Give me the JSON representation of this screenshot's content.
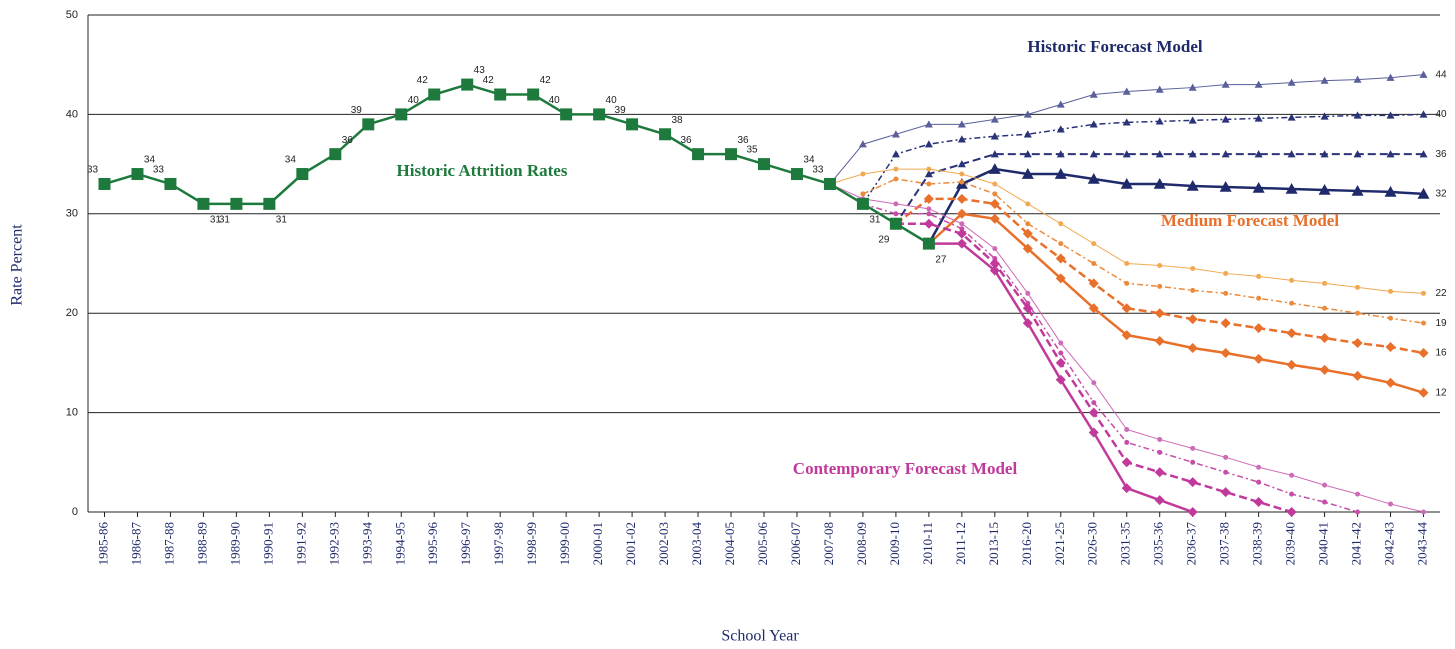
{
  "chart_data": {
    "type": "line",
    "ylabel": "Rate Percent",
    "xlabel": "School Year",
    "categories": [
      "1985-86",
      "1986-87",
      "1987-88",
      "1988-89",
      "1989-90",
      "1990-91",
      "1991-92",
      "1992-93",
      "1993-94",
      "1994-95",
      "1995-96",
      "1996-97",
      "1997-98",
      "1998-99",
      "1999-00",
      "2000-01",
      "2001-02",
      "2002-03",
      "2003-04",
      "2004-05",
      "2005-06",
      "2006-07",
      "2007-08",
      "2008-09",
      "2009-10",
      "2010-11",
      "2011-12",
      "2013-15",
      "2016-20",
      "2021-25",
      "2026-30",
      "2031-35",
      "2035-36",
      "2036-37",
      "2037-38",
      "2038-39",
      "2039-40",
      "2040-41",
      "2041-42",
      "2042-43",
      "2043-44"
    ],
    "ylim": [
      0,
      50
    ],
    "yticks": [
      0,
      10,
      20,
      30,
      40,
      50
    ],
    "grid": true,
    "annotations": [
      {
        "text": "Historic Forecast Model",
        "color": "#1f2a6b"
      },
      {
        "text": "Historic Attrition Rates",
        "color": "#1e7a3c"
      },
      {
        "text": "Medium Forecast Model",
        "color": "#e8702a"
      },
      {
        "text": "Contemporary Forecast Model",
        "color": "#c0399b"
      }
    ],
    "series": [
      {
        "color": "#5a5f9a",
        "dash": "",
        "width": 1,
        "marker": "triangle",
        "values": [
          null,
          null,
          null,
          null,
          null,
          null,
          null,
          null,
          null,
          null,
          null,
          null,
          null,
          null,
          null,
          null,
          null,
          null,
          null,
          null,
          null,
          null,
          33,
          37,
          38,
          39,
          39,
          39.5,
          40,
          41,
          42,
          42.3,
          42.5,
          42.7,
          43,
          43,
          43.2,
          43.4,
          43.5,
          43.7,
          44
        ]
      },
      {
        "color": "#2a3278",
        "dash": "6,3,2,3",
        "width": 1.5,
        "marker": "triangle",
        "values": [
          null,
          null,
          null,
          null,
          null,
          null,
          null,
          null,
          null,
          null,
          null,
          null,
          null,
          null,
          null,
          null,
          null,
          null,
          null,
          null,
          null,
          null,
          null,
          31,
          36,
          37,
          37.5,
          37.8,
          38,
          38.5,
          39,
          39.2,
          39.3,
          39.4,
          39.5,
          39.6,
          39.7,
          39.8,
          39.9,
          39.9,
          40
        ]
      },
      {
        "color": "#2a3278",
        "dash": "8,4",
        "width": 2,
        "marker": "triangle",
        "values": [
          null,
          null,
          null,
          null,
          null,
          null,
          null,
          null,
          null,
          null,
          null,
          null,
          null,
          null,
          null,
          null,
          null,
          null,
          null,
          null,
          null,
          null,
          null,
          31,
          29,
          34,
          35,
          36,
          36,
          36,
          36,
          36,
          36,
          36,
          36,
          36,
          36,
          36,
          36,
          36,
          36
        ]
      },
      {
        "color": "#1f2a6b",
        "dash": "",
        "width": 2.5,
        "marker": "triangle",
        "values": [
          null,
          null,
          null,
          null,
          null,
          null,
          null,
          null,
          null,
          null,
          null,
          null,
          null,
          null,
          null,
          null,
          null,
          null,
          null,
          null,
          null,
          null,
          null,
          null,
          null,
          27,
          33,
          34.5,
          34,
          34,
          33.5,
          33,
          33,
          32.8,
          32.7,
          32.6,
          32.5,
          32.4,
          32.3,
          32.2,
          32
        ]
      },
      {
        "color": "#f0a950",
        "dash": "",
        "width": 1,
        "marker": "circle",
        "values": [
          null,
          null,
          null,
          null,
          null,
          null,
          null,
          null,
          null,
          null,
          null,
          null,
          null,
          null,
          null,
          null,
          null,
          null,
          null,
          null,
          null,
          null,
          33,
          34,
          34.5,
          34.5,
          34,
          33,
          31,
          29,
          27,
          25,
          24.8,
          24.5,
          24,
          23.7,
          23.3,
          23,
          22.6,
          22.2,
          22
        ]
      },
      {
        "color": "#ec8a3c",
        "dash": "6,3,2,3",
        "width": 1.5,
        "marker": "circle",
        "values": [
          null,
          null,
          null,
          null,
          null,
          null,
          null,
          null,
          null,
          null,
          null,
          null,
          null,
          null,
          null,
          null,
          null,
          null,
          null,
          null,
          null,
          null,
          null,
          32,
          33.5,
          33,
          33.2,
          32,
          29,
          27,
          25,
          23,
          22.7,
          22.3,
          22,
          21.5,
          21,
          20.5,
          20,
          19.5,
          19
        ]
      },
      {
        "color": "#e8702a",
        "dash": "8,4",
        "width": 2.5,
        "marker": "diamond",
        "values": [
          null,
          null,
          null,
          null,
          null,
          null,
          null,
          null,
          null,
          null,
          null,
          null,
          null,
          null,
          null,
          null,
          null,
          null,
          null,
          null,
          null,
          null,
          null,
          null,
          29,
          31.5,
          31.5,
          31,
          28,
          25.5,
          23,
          20.5,
          20,
          19.4,
          19,
          18.5,
          18,
          17.5,
          17,
          16.6,
          16
        ]
      },
      {
        "color": "#e8702a",
        "dash": "",
        "width": 2.5,
        "marker": "diamond",
        "values": [
          null,
          null,
          null,
          null,
          null,
          null,
          null,
          null,
          null,
          null,
          null,
          null,
          null,
          null,
          null,
          null,
          null,
          null,
          null,
          null,
          null,
          null,
          null,
          null,
          null,
          27,
          30,
          29.5,
          26.5,
          23.5,
          20.5,
          17.8,
          17.2,
          16.5,
          16,
          15.4,
          14.8,
          14.3,
          13.7,
          13,
          12
        ]
      },
      {
        "color": "#cf6bb6",
        "dash": "",
        "width": 1,
        "marker": "circle",
        "values": [
          null,
          null,
          null,
          null,
          null,
          null,
          null,
          null,
          null,
          null,
          null,
          null,
          null,
          null,
          null,
          null,
          null,
          null,
          null,
          null,
          null,
          null,
          33,
          31.5,
          31,
          30.5,
          29,
          26.5,
          22,
          17,
          13,
          8.3,
          7.3,
          6.4,
          5.5,
          4.5,
          3.7,
          2.7,
          1.8,
          0.8,
          0
        ]
      },
      {
        "color": "#c74ea8",
        "dash": "6,3,2,3",
        "width": 1.5,
        "marker": "circle",
        "values": [
          null,
          null,
          null,
          null,
          null,
          null,
          null,
          null,
          null,
          null,
          null,
          null,
          null,
          null,
          null,
          null,
          null,
          null,
          null,
          null,
          null,
          null,
          null,
          31,
          30,
          30,
          28.5,
          25.5,
          21,
          16,
          11,
          7,
          6,
          5,
          4,
          3,
          1.8,
          1,
          0,
          null,
          null
        ]
      },
      {
        "color": "#c0399b",
        "dash": "8,4",
        "width": 2.5,
        "marker": "diamond",
        "values": [
          null,
          null,
          null,
          null,
          null,
          null,
          null,
          null,
          null,
          null,
          null,
          null,
          null,
          null,
          null,
          null,
          null,
          null,
          null,
          null,
          null,
          null,
          null,
          null,
          29,
          29,
          28,
          25,
          20.5,
          15,
          10,
          5,
          4,
          3,
          2,
          1,
          0,
          null,
          null,
          null,
          null
        ]
      },
      {
        "color": "#c0399b",
        "dash": "",
        "width": 2.5,
        "marker": "diamond",
        "values": [
          null,
          null,
          null,
          null,
          null,
          null,
          null,
          null,
          null,
          null,
          null,
          null,
          null,
          null,
          null,
          null,
          null,
          null,
          null,
          null,
          null,
          null,
          null,
          null,
          null,
          27,
          27,
          24.3,
          19,
          13.3,
          8,
          2.4,
          1.2,
          0,
          null,
          null,
          null,
          null,
          null,
          null,
          null
        ]
      },
      {
        "color": "#1e7a3c",
        "dash": "",
        "width": 2.5,
        "marker": "square",
        "labels": true,
        "values": [
          33,
          34,
          33,
          31,
          31,
          31,
          34,
          36,
          39,
          40,
          42,
          43,
          42,
          42,
          40,
          40,
          39,
          38,
          36,
          36,
          35,
          34,
          33,
          31,
          29,
          27,
          null,
          null,
          null,
          null,
          null,
          null,
          null,
          null,
          null,
          null,
          null,
          null,
          null,
          null,
          null
        ]
      }
    ]
  }
}
